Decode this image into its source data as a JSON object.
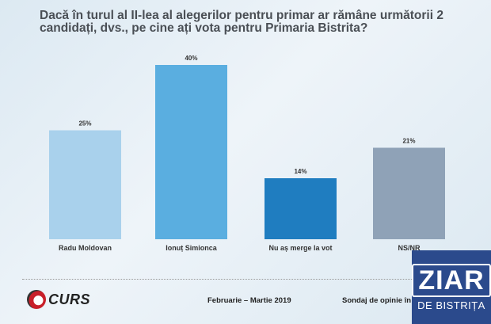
{
  "title": "Dacă în turul al II-lea al alegerilor pentru primar ar rămâne următorii 2 candidați, dvs., pe cine ați vota  pentru Primaria Bistrita?",
  "chart_data": {
    "type": "bar",
    "title": "Dacă în turul al II-lea al alegerilor pentru primar ar rămâne următorii 2 candidați, dvs., pe cine ați vota  pentru Primaria Bistrita?",
    "categories": [
      "Radu Moldovan",
      "Ionuț Simionca",
      "Nu aș merge la vot",
      "NS/NR"
    ],
    "values": [
      25,
      40,
      14,
      21
    ],
    "data_labels": [
      "25%",
      "40%",
      "14%",
      "21%"
    ],
    "colors": [
      "#a9d1ec",
      "#5aaee0",
      "#1f7dc0",
      "#8fa2b7"
    ],
    "ylim": [
      0,
      40
    ],
    "grid": false,
    "xlabel": "",
    "ylabel": ""
  },
  "footer": {
    "brand": "CURS",
    "date": "Februarie – Martie 2019",
    "survey": "Sondaj de opinie în M"
  },
  "watermark": {
    "line1": "ZIAR",
    "line2": "DE BISTRIȚA"
  }
}
